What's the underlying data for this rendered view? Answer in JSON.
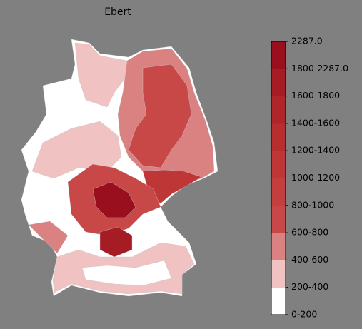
{
  "title": "Ebert",
  "colorbar": {
    "labels": [
      "0-200",
      "200-400",
      "400-600",
      "600-800",
      "800-1000",
      "1000-1200",
      "1200-1400",
      "1400-1600",
      "1600-1800",
      "1800-2287.0",
      "2287.0"
    ],
    "colors": [
      "#ffffff",
      "#f0c2c2",
      "#da8282",
      "#c84848",
      "#c43e3e",
      "#bf3636",
      "#b82e2e",
      "#b02628",
      "#a61c24",
      "#9a0f1e"
    ]
  }
}
